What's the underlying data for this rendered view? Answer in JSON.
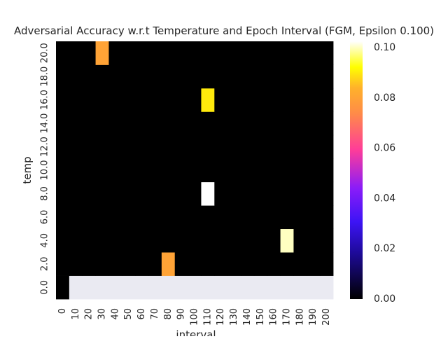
{
  "chart_data": {
    "type": "heatmap",
    "title": "Adversarial Accuracy w.r.t Temperature and Epoch Interval (FGM, Epsilon 0.100)",
    "xlabel": "interval",
    "ylabel": "temp",
    "x_categories": [
      "0",
      "10",
      "20",
      "30",
      "40",
      "50",
      "60",
      "70",
      "80",
      "90",
      "100",
      "110",
      "120",
      "130",
      "140",
      "150",
      "160",
      "170",
      "180",
      "190",
      "200"
    ],
    "y_categories": [
      "0.0",
      "2.0",
      "4.0",
      "6.0",
      "8.0",
      "10.0",
      "12.0",
      "14.0",
      "16.0",
      "18.0",
      "20.0"
    ],
    "colormap": "gnuplot2",
    "colorbar": {
      "range": [
        0.0,
        0.1025
      ],
      "ticks": [
        "0.00",
        "0.02",
        "0.04",
        "0.06",
        "0.08",
        "0.10"
      ]
    },
    "missing_color": "#eaeaf2",
    "values": [
      [
        0,
        null,
        null,
        null,
        null,
        null,
        null,
        null,
        null,
        null,
        null,
        null,
        null,
        null,
        null,
        null,
        null,
        null,
        null,
        null,
        null
      ],
      [
        0,
        0,
        0,
        0,
        0,
        0,
        0,
        0,
        0.08,
        0,
        0,
        0,
        0,
        0,
        0,
        0,
        0,
        0,
        0,
        0,
        0
      ],
      [
        0,
        0,
        0,
        0,
        0,
        0,
        0,
        0,
        0,
        0,
        0,
        0,
        0,
        0,
        0,
        0,
        0,
        0.1,
        0,
        0,
        0
      ],
      [
        0,
        0,
        0,
        0,
        0,
        0,
        0,
        0,
        0,
        0,
        0,
        0,
        0,
        0,
        0,
        0,
        0,
        0,
        0,
        0,
        0
      ],
      [
        0,
        0,
        0,
        0,
        0,
        0,
        0,
        0,
        0,
        0,
        0,
        0.1025,
        0,
        0,
        0,
        0,
        0,
        0,
        0,
        0,
        0
      ],
      [
        0,
        0,
        0,
        0,
        0,
        0,
        0,
        0,
        0,
        0,
        0,
        0,
        0,
        0,
        0,
        0,
        0,
        0,
        0,
        0,
        0
      ],
      [
        0,
        0,
        0,
        0,
        0,
        0,
        0,
        0,
        0,
        0,
        0,
        0,
        0,
        0,
        0,
        0,
        0,
        0,
        0,
        0,
        0
      ],
      [
        0,
        0,
        0,
        0,
        0,
        0,
        0,
        0,
        0,
        0,
        0,
        0,
        0,
        0,
        0,
        0,
        0,
        0,
        0,
        0,
        0
      ],
      [
        0,
        0,
        0,
        0,
        0,
        0,
        0,
        0,
        0,
        0,
        0,
        0.09,
        0,
        0,
        0,
        0,
        0,
        0,
        0,
        0,
        0
      ],
      [
        0,
        0,
        0,
        0,
        0,
        0,
        0,
        0,
        0,
        0,
        0,
        0,
        0,
        0,
        0,
        0,
        0,
        0,
        0,
        0,
        0
      ],
      [
        0,
        0,
        0,
        0.08,
        0,
        0,
        0,
        0,
        0,
        0,
        0,
        0,
        0,
        0,
        0,
        0,
        0,
        0,
        0,
        0,
        0
      ]
    ]
  }
}
